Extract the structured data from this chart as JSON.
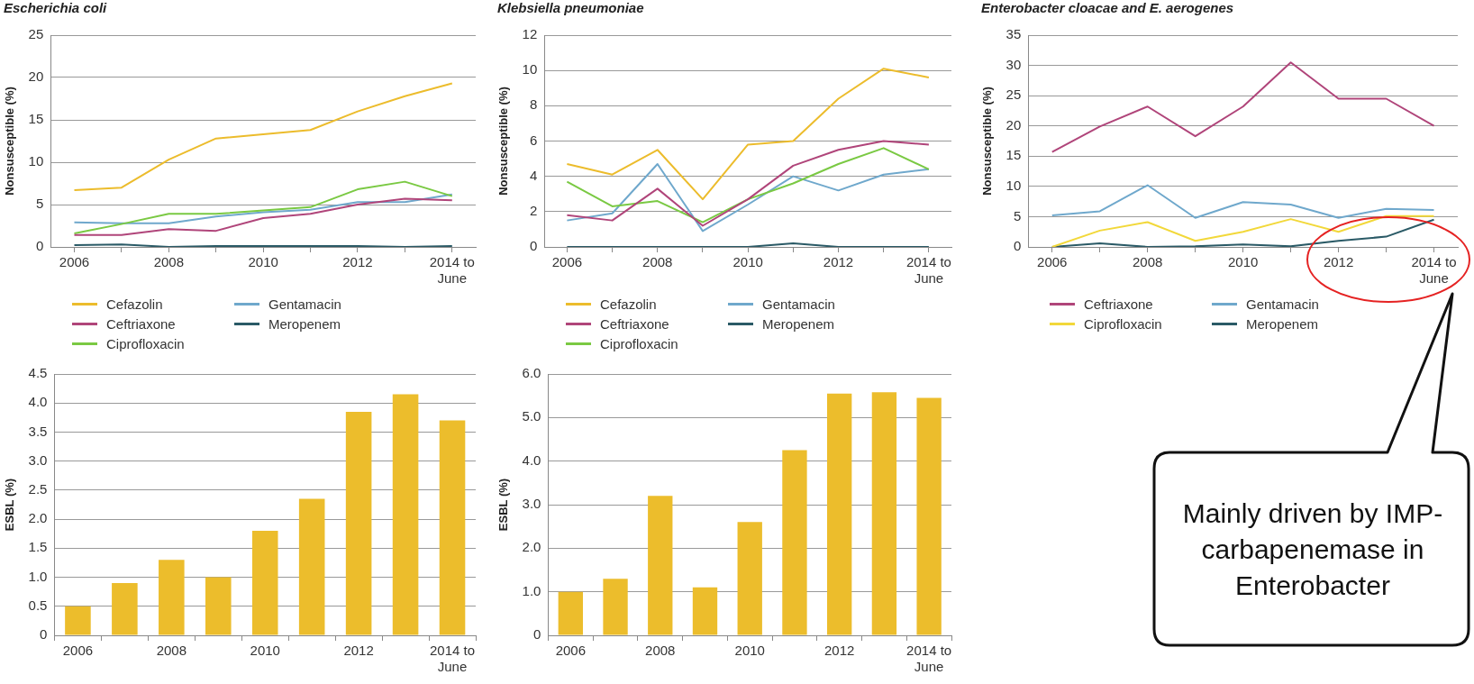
{
  "chart_data": [
    {
      "type": "line",
      "title": "Escherichia coli",
      "ylabel": "Nonsusceptible (%)",
      "categories": [
        "2006",
        null,
        "2008",
        null,
        "2010",
        null,
        "2012",
        null,
        "2014 to June"
      ],
      "ylim": [
        0,
        25
      ],
      "yticks": [
        0,
        5,
        10,
        15,
        20,
        25
      ],
      "grid": "y",
      "legend": "bottom",
      "series": [
        {
          "name": "Cefazolin",
          "color": "#ecbc2c",
          "values": [
            6.7,
            7.0,
            10.3,
            12.8,
            13.3,
            13.8,
            16.0,
            17.8,
            19.3
          ]
        },
        {
          "name": "Ceftriaxone",
          "color": "#b0457a",
          "values": [
            1.4,
            1.4,
            2.1,
            1.9,
            3.4,
            3.9,
            5.0,
            5.7,
            5.5
          ]
        },
        {
          "name": "Ciprofloxacin",
          "color": "#7ac943",
          "values": [
            1.6,
            2.7,
            3.9,
            3.9,
            4.3,
            4.7,
            6.8,
            7.7,
            6.0
          ]
        },
        {
          "name": "Gentamacin",
          "color": "#6fa8cc",
          "values": [
            2.9,
            2.8,
            2.8,
            3.6,
            4.1,
            4.4,
            5.3,
            5.3,
            6.2
          ]
        },
        {
          "name": "Meropenem",
          "color": "#2a5a66",
          "values": [
            0.2,
            0.3,
            0.0,
            0.1,
            0.1,
            0.1,
            0.1,
            0.0,
            0.1
          ]
        }
      ]
    },
    {
      "type": "line",
      "title": "Klebsiella pneumoniae",
      "ylabel": "Nonsusceptible (%)",
      "categories": [
        "2006",
        null,
        "2008",
        null,
        "2010",
        null,
        "2012",
        null,
        "2014 to June"
      ],
      "ylim": [
        0,
        12
      ],
      "yticks": [
        0,
        2,
        4,
        6,
        8,
        10,
        12
      ],
      "grid": "y",
      "legend": "bottom",
      "series": [
        {
          "name": "Cefazolin",
          "color": "#ecbc2c",
          "values": [
            4.7,
            4.1,
            5.5,
            2.7,
            5.8,
            6.0,
            8.4,
            10.1,
            9.6
          ]
        },
        {
          "name": "Ceftriaxone",
          "color": "#b0457a",
          "values": [
            1.8,
            1.5,
            3.3,
            1.2,
            2.7,
            4.6,
            5.5,
            6.0,
            5.8
          ]
        },
        {
          "name": "Ciprofloxacin",
          "color": "#7ac943",
          "values": [
            3.7,
            2.3,
            2.6,
            1.4,
            2.7,
            3.6,
            4.7,
            5.6,
            4.4
          ]
        },
        {
          "name": "Gentamacin",
          "color": "#6fa8cc",
          "values": [
            1.5,
            1.9,
            4.7,
            0.9,
            2.4,
            4.0,
            3.2,
            4.1,
            4.4
          ]
        },
        {
          "name": "Meropenem",
          "color": "#2a5a66",
          "values": [
            0,
            0,
            0,
            0,
            0,
            0.2,
            0,
            0,
            0
          ]
        }
      ]
    },
    {
      "type": "line",
      "title": "Enterobacter cloacae and E. aerogenes",
      "ylabel": "Nonsusceptible (%)",
      "categories": [
        "2006",
        null,
        "2008",
        null,
        "2010",
        null,
        "2012",
        null,
        "2014 to June"
      ],
      "ylim": [
        0,
        35
      ],
      "yticks": [
        0,
        5,
        10,
        15,
        20,
        25,
        30,
        35
      ],
      "grid": "y",
      "legend": "bottom",
      "annotations": [
        "Mainly driven by IMP-carbapenemase in Enterobacter"
      ],
      "series": [
        {
          "name": "Ceftriaxone",
          "color": "#b0457a",
          "values": [
            15.7,
            19.9,
            23.2,
            18.3,
            23.2,
            30.5,
            24.5,
            24.5,
            20.0
          ]
        },
        {
          "name": "Ciprofloxacin",
          "color": "#f2d83a",
          "values": [
            0.0,
            2.7,
            4.1,
            1.0,
            2.5,
            4.6,
            2.5,
            5.1,
            5.1
          ]
        },
        {
          "name": "Gentamacin",
          "color": "#6fa8cc",
          "values": [
            5.2,
            5.9,
            10.2,
            4.8,
            7.4,
            7.0,
            4.8,
            6.3,
            6.1
          ]
        },
        {
          "name": "Meropenem",
          "color": "#2a5a66",
          "values": [
            0.0,
            0.6,
            0.0,
            0.1,
            0.4,
            0.1,
            1.0,
            1.7,
            4.5
          ]
        }
      ]
    },
    {
      "type": "bar",
      "ylabel": "ESBL (%)",
      "categories": [
        "2006",
        null,
        "2008",
        null,
        "2010",
        null,
        "2012",
        null,
        "2014 to June"
      ],
      "ylim": [
        0,
        4.5
      ],
      "yticks": [
        0,
        0.5,
        {
          "value": 1,
          "label": "1.0"
        },
        1.5,
        {
          "value": 2,
          "label": "2.0"
        },
        2.5,
        {
          "value": 3,
          "label": "3.0"
        },
        3.5,
        {
          "value": 4,
          "label": "4.0"
        },
        4.5
      ],
      "grid": "y",
      "color": "#ecbd2c",
      "values": [
        0.5,
        0.9,
        1.3,
        1.0,
        1.8,
        2.35,
        3.85,
        4.15,
        3.7
      ]
    },
    {
      "type": "bar",
      "ylabel": "ESBL (%)",
      "categories": [
        "2006",
        null,
        "2008",
        null,
        "2010",
        null,
        "2012",
        null,
        "2014 to June"
      ],
      "ylim": [
        0,
        6
      ],
      "yticks": [
        0,
        {
          "value": 1,
          "label": "1.0"
        },
        {
          "value": 2,
          "label": "2.0"
        },
        {
          "value": 3,
          "label": "3.0"
        },
        {
          "value": 4,
          "label": "4.0"
        },
        {
          "value": 5,
          "label": "5.0"
        },
        {
          "value": 6,
          "label": "6.0"
        }
      ],
      "grid": "y",
      "color": "#ecbd2c",
      "values": [
        1.0,
        1.3,
        3.2,
        1.1,
        2.6,
        4.25,
        5.55,
        5.58,
        5.45
      ]
    }
  ]
}
